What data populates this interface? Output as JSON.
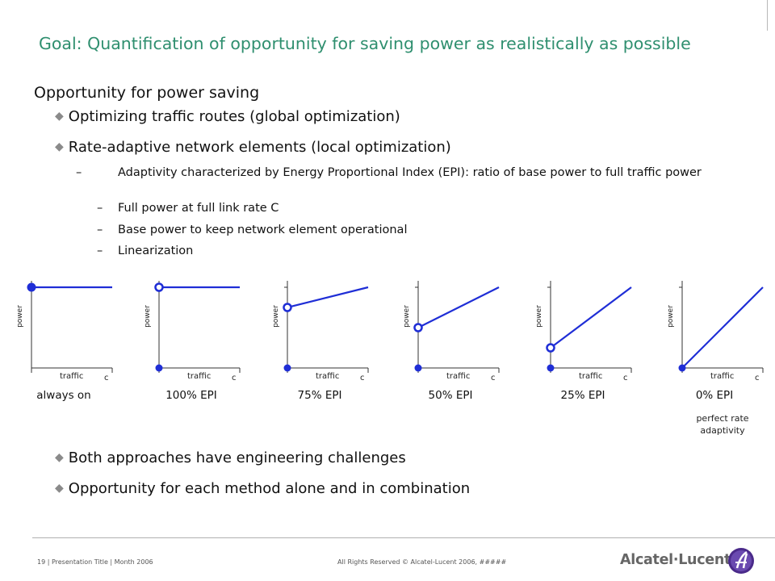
{
  "title": "Goal: Quantification of opportunity for saving power as realistically as possible",
  "heading": "Opportunity for power saving",
  "bullets_top": [
    "Optimizing traffic routes (global optimization)",
    "Rate-adaptive network elements (local optimization)"
  ],
  "subbullets": [
    "Adaptivity characterized by Energy Proportional Index (EPI): ratio of base power to full traffic power",
    "Full power at full link rate C",
    "Base power to keep network element operational",
    "Linearization"
  ],
  "chart_data": [
    {
      "type": "line",
      "ylabel": "power",
      "xlabel": "traffic",
      "x_end_label": "c",
      "caption": "always on",
      "note": "",
      "x": [
        0,
        1
      ],
      "y": [
        1.0,
        1.0
      ]
    },
    {
      "type": "line",
      "ylabel": "power",
      "xlabel": "traffic",
      "x_end_label": "c",
      "caption": "100% EPI",
      "note": "",
      "x": [
        0,
        1
      ],
      "y": [
        1.0,
        1.0
      ]
    },
    {
      "type": "line",
      "ylabel": "power",
      "xlabel": "traffic",
      "x_end_label": "c",
      "caption": "75% EPI",
      "note": "",
      "x": [
        0,
        1
      ],
      "y": [
        0.75,
        1.0
      ]
    },
    {
      "type": "line",
      "ylabel": "power",
      "xlabel": "traffic",
      "x_end_label": "c",
      "caption": "50% EPI",
      "note": "",
      "x": [
        0,
        1
      ],
      "y": [
        0.5,
        1.0
      ]
    },
    {
      "type": "line",
      "ylabel": "power",
      "xlabel": "traffic",
      "x_end_label": "c",
      "caption": "25% EPI",
      "note": "",
      "x": [
        0,
        1
      ],
      "y": [
        0.25,
        1.0
      ]
    },
    {
      "type": "line",
      "ylabel": "power",
      "xlabel": "traffic",
      "x_end_label": "c",
      "caption": "0% EPI",
      "note": "perfect rate adaptivity",
      "x": [
        0,
        1
      ],
      "y": [
        0.0,
        1.0
      ]
    }
  ],
  "bullets_bottom": [
    "Both approaches have engineering challenges",
    "Opportunity for each method alone and in combination"
  ],
  "footer": {
    "left": "19 | Presentation Title | Month 2006",
    "center": "All Rights Reserved © Alcatel-Lucent 2006, #####",
    "logo_text": "Alcatel·Lucent"
  },
  "colors": {
    "title": "#2f8f6f",
    "line": "#1f2ed6",
    "bullet": "#8a8a8a"
  }
}
